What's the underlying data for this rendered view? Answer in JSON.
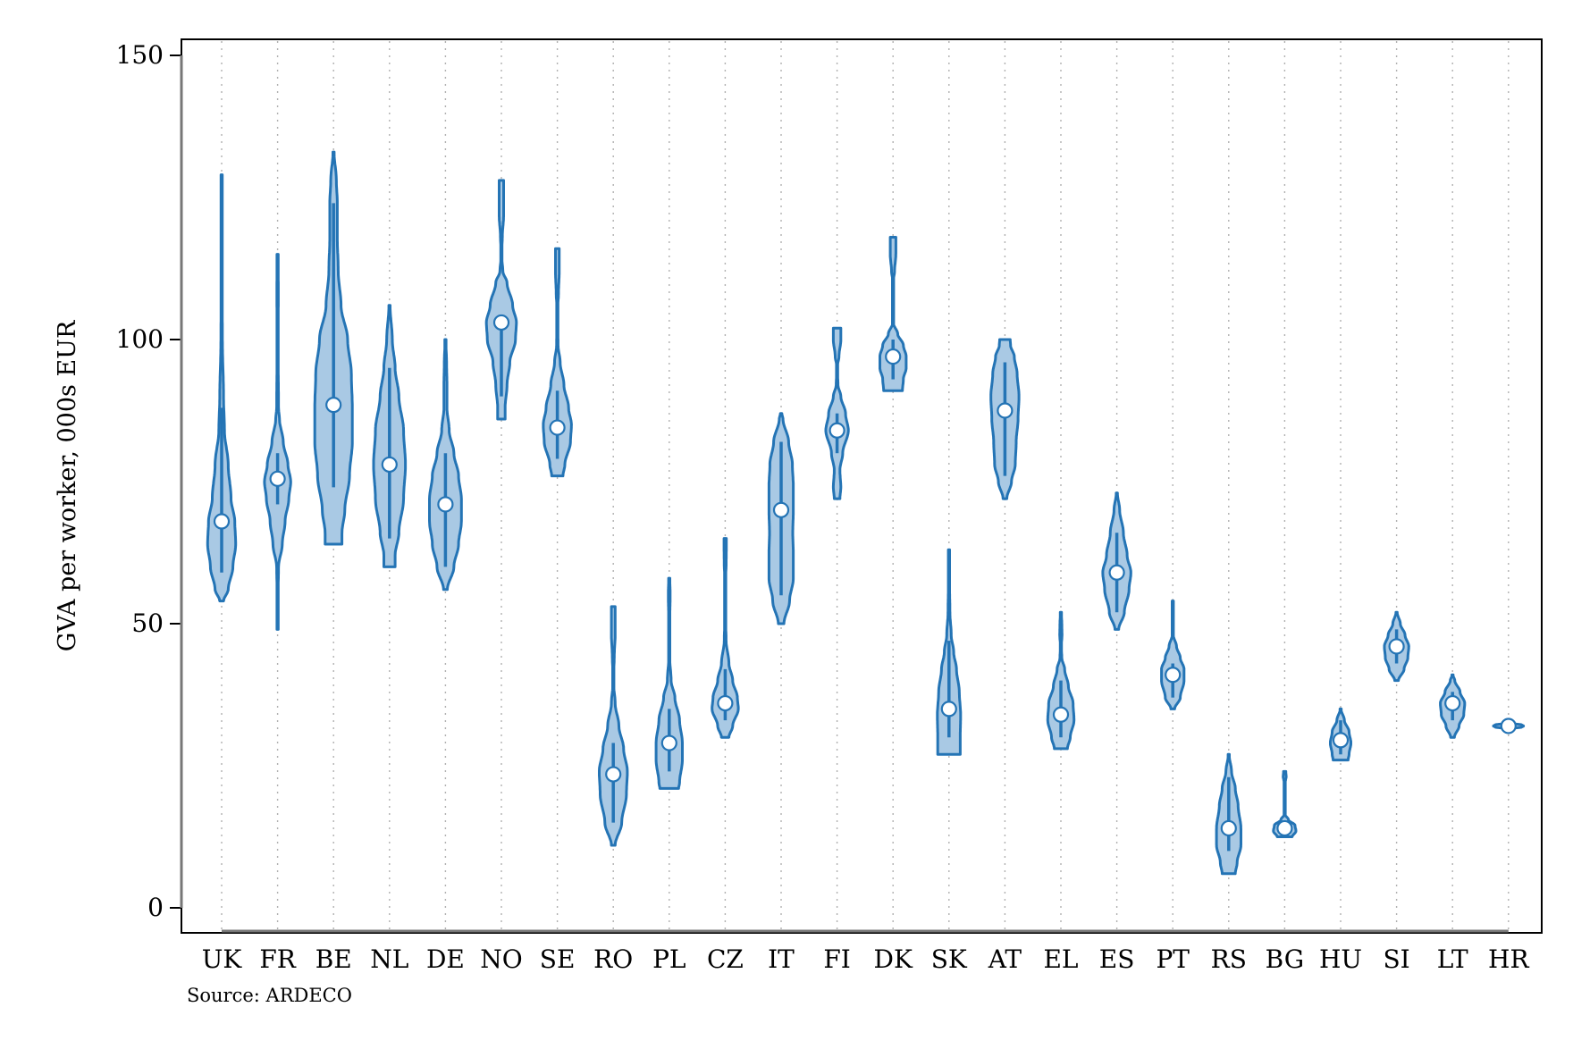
{
  "chart_data": {
    "type": "violin",
    "ylabel": "GVA per worker, 000s EUR",
    "xlabel": "",
    "ylim": [
      -4,
      154
    ],
    "yticks": [
      0,
      50,
      100,
      150
    ],
    "source": "Source: ARDECO",
    "grid": "vertical dotted",
    "colors": {
      "fill": "#a9c9e4",
      "stroke": "#2474b5",
      "median_marker": "#ffffff",
      "grid": "#b0b0b0"
    },
    "categories": [
      "UK",
      "FR",
      "BE",
      "NL",
      "DE",
      "NO",
      "SE",
      "RO",
      "PL",
      "CZ",
      "IT",
      "FI",
      "DK",
      "SK",
      "AT",
      "EL",
      "ES",
      "PT",
      "RS",
      "BG",
      "HU",
      "SI",
      "LT",
      "HR"
    ],
    "series": [
      {
        "category": "UK",
        "median": 68,
        "q1": 59,
        "q3": 88,
        "min": 54,
        "max": 129,
        "profile": [
          [
            54,
            0.1
          ],
          [
            56,
            0.35
          ],
          [
            60,
            0.6
          ],
          [
            64,
            0.75
          ],
          [
            68,
            0.7
          ],
          [
            72,
            0.5
          ],
          [
            78,
            0.35
          ],
          [
            84,
            0.15
          ],
          [
            90,
            0.1
          ],
          [
            100,
            0.04
          ],
          [
            110,
            0.02
          ],
          [
            129,
            0.01
          ]
        ]
      },
      {
        "category": "FR",
        "median": 75.5,
        "q1": 71,
        "q3": 80,
        "min": 49,
        "max": 115,
        "profile": [
          [
            49,
            0.02
          ],
          [
            56,
            0.03
          ],
          [
            60,
            0.05
          ],
          [
            64,
            0.25
          ],
          [
            68,
            0.4
          ],
          [
            72,
            0.6
          ],
          [
            75,
            0.7
          ],
          [
            78,
            0.55
          ],
          [
            82,
            0.3
          ],
          [
            86,
            0.1
          ],
          [
            88,
            0.05
          ],
          [
            100,
            0.02
          ],
          [
            108,
            0.04
          ],
          [
            115,
            0.02
          ]
        ]
      },
      {
        "category": "BE",
        "median": 88.5,
        "q1": 74,
        "q3": 124,
        "min": 64,
        "max": 133,
        "profile": [
          [
            64,
            0.45
          ],
          [
            66,
            0.45
          ],
          [
            70,
            0.6
          ],
          [
            76,
            0.85
          ],
          [
            82,
            1.0
          ],
          [
            88,
            1.0
          ],
          [
            94,
            0.95
          ],
          [
            100,
            0.75
          ],
          [
            106,
            0.4
          ],
          [
            112,
            0.25
          ],
          [
            118,
            0.2
          ],
          [
            124,
            0.2
          ],
          [
            128,
            0.15
          ],
          [
            133,
            0.03
          ]
        ]
      },
      {
        "category": "NL",
        "median": 78,
        "q1": 65,
        "q3": 95,
        "min": 60,
        "max": 106,
        "profile": [
          [
            60,
            0.3
          ],
          [
            62,
            0.3
          ],
          [
            66,
            0.5
          ],
          [
            72,
            0.75
          ],
          [
            78,
            0.85
          ],
          [
            84,
            0.75
          ],
          [
            90,
            0.5
          ],
          [
            95,
            0.3
          ],
          [
            100,
            0.15
          ],
          [
            106,
            0.03
          ]
        ]
      },
      {
        "category": "DE",
        "median": 71,
        "q1": 60,
        "q3": 80,
        "min": 56,
        "max": 100,
        "profile": [
          [
            56,
            0.1
          ],
          [
            60,
            0.45
          ],
          [
            64,
            0.7
          ],
          [
            68,
            0.85
          ],
          [
            72,
            0.85
          ],
          [
            76,
            0.7
          ],
          [
            80,
            0.45
          ],
          [
            84,
            0.2
          ],
          [
            88,
            0.08
          ],
          [
            92,
            0.08
          ],
          [
            96,
            0.06
          ],
          [
            100,
            0.02
          ]
        ]
      },
      {
        "category": "NO",
        "median": 103,
        "q1": 90,
        "q3": 104,
        "min": 86,
        "max": 128,
        "profile": [
          [
            86,
            0.2
          ],
          [
            88,
            0.2
          ],
          [
            92,
            0.3
          ],
          [
            96,
            0.45
          ],
          [
            100,
            0.75
          ],
          [
            103,
            0.8
          ],
          [
            106,
            0.6
          ],
          [
            110,
            0.3
          ],
          [
            112,
            0.08
          ],
          [
            115,
            0.0
          ],
          [
            118,
            0.05
          ],
          [
            122,
            0.12
          ],
          [
            126,
            0.12
          ],
          [
            128,
            0.12
          ]
        ]
      },
      {
        "category": "SE",
        "median": 84.5,
        "q1": 79,
        "q3": 91,
        "min": 76,
        "max": 116,
        "profile": [
          [
            76,
            0.3
          ],
          [
            78,
            0.4
          ],
          [
            82,
            0.7
          ],
          [
            85,
            0.75
          ],
          [
            88,
            0.6
          ],
          [
            92,
            0.35
          ],
          [
            96,
            0.15
          ],
          [
            99,
            0.04
          ],
          [
            105,
            0.0
          ],
          [
            108,
            0.06
          ],
          [
            112,
            0.1
          ],
          [
            116,
            0.1
          ]
        ]
      },
      {
        "category": "RO",
        "median": 23.5,
        "q1": 15,
        "q3": 29,
        "min": 11,
        "max": 53,
        "profile": [
          [
            11,
            0.1
          ],
          [
            15,
            0.45
          ],
          [
            20,
            0.7
          ],
          [
            24,
            0.75
          ],
          [
            28,
            0.55
          ],
          [
            32,
            0.3
          ],
          [
            36,
            0.1
          ],
          [
            40,
            0.0
          ],
          [
            44,
            0.05
          ],
          [
            48,
            0.1
          ],
          [
            53,
            0.1
          ]
        ]
      },
      {
        "category": "PL",
        "median": 29,
        "q1": 24,
        "q3": 35,
        "min": 21,
        "max": 58,
        "profile": [
          [
            21,
            0.5
          ],
          [
            22,
            0.55
          ],
          [
            26,
            0.7
          ],
          [
            29,
            0.7
          ],
          [
            33,
            0.55
          ],
          [
            37,
            0.3
          ],
          [
            40,
            0.1
          ],
          [
            45,
            0.0
          ],
          [
            51,
            0.03
          ],
          [
            55,
            0.05
          ],
          [
            58,
            0.03
          ]
        ]
      },
      {
        "category": "CZ",
        "median": 36,
        "q1": 33,
        "q3": 42,
        "min": 30,
        "max": 65,
        "profile": [
          [
            30,
            0.2
          ],
          [
            32,
            0.4
          ],
          [
            35,
            0.7
          ],
          [
            37,
            0.65
          ],
          [
            40,
            0.4
          ],
          [
            43,
            0.2
          ],
          [
            47,
            0.05
          ],
          [
            52,
            0.0
          ],
          [
            58,
            0.0
          ],
          [
            60,
            0.05
          ],
          [
            63,
            0.06
          ],
          [
            65,
            0.06
          ]
        ]
      },
      {
        "category": "IT",
        "median": 70,
        "q1": 55,
        "q3": 82,
        "min": 50,
        "max": 87,
        "profile": [
          [
            50,
            0.15
          ],
          [
            54,
            0.45
          ],
          [
            58,
            0.65
          ],
          [
            62,
            0.65
          ],
          [
            66,
            0.62
          ],
          [
            70,
            0.65
          ],
          [
            74,
            0.65
          ],
          [
            78,
            0.6
          ],
          [
            82,
            0.4
          ],
          [
            86,
            0.1
          ],
          [
            87,
            0.04
          ]
        ]
      },
      {
        "category": "FI",
        "median": 84,
        "q1": 80,
        "q3": 87,
        "min": 72,
        "max": 102,
        "profile": [
          [
            72,
            0.15
          ],
          [
            74,
            0.2
          ],
          [
            77,
            0.15
          ],
          [
            80,
            0.3
          ],
          [
            84,
            0.6
          ],
          [
            87,
            0.45
          ],
          [
            90,
            0.2
          ],
          [
            92,
            0.05
          ],
          [
            95,
            0.0
          ],
          [
            97,
            0.1
          ],
          [
            100,
            0.2
          ],
          [
            102,
            0.2
          ]
        ]
      },
      {
        "category": "DK",
        "median": 97,
        "q1": 93,
        "q3": 100,
        "min": 91,
        "max": 118,
        "profile": [
          [
            91,
            0.5
          ],
          [
            93,
            0.55
          ],
          [
            95,
            0.7
          ],
          [
            97,
            0.7
          ],
          [
            99,
            0.55
          ],
          [
            101,
            0.25
          ],
          [
            103,
            0.0
          ],
          [
            110,
            0.0
          ],
          [
            112,
            0.08
          ],
          [
            115,
            0.15
          ],
          [
            118,
            0.15
          ]
        ]
      },
      {
        "category": "SK",
        "median": 35,
        "q1": 30,
        "q3": 47,
        "min": 27,
        "max": 63,
        "profile": [
          [
            27,
            0.6
          ],
          [
            28,
            0.6
          ],
          [
            30,
            0.6
          ],
          [
            34,
            0.62
          ],
          [
            38,
            0.55
          ],
          [
            42,
            0.4
          ],
          [
            45,
            0.25
          ],
          [
            48,
            0.12
          ],
          [
            52,
            0.05
          ],
          [
            57,
            0.03
          ],
          [
            63,
            0.02
          ]
        ]
      },
      {
        "category": "AT",
        "median": 87.5,
        "q1": 76,
        "q3": 96,
        "min": 72,
        "max": 100,
        "profile": [
          [
            72,
            0.1
          ],
          [
            75,
            0.35
          ],
          [
            78,
            0.55
          ],
          [
            82,
            0.6
          ],
          [
            86,
            0.7
          ],
          [
            90,
            0.75
          ],
          [
            94,
            0.65
          ],
          [
            97,
            0.5
          ],
          [
            99,
            0.3
          ],
          [
            100,
            0.28
          ]
        ]
      },
      {
        "category": "EL",
        "median": 34,
        "q1": 30,
        "q3": 40,
        "min": 28,
        "max": 52,
        "profile": [
          [
            28,
            0.35
          ],
          [
            30,
            0.5
          ],
          [
            33,
            0.7
          ],
          [
            36,
            0.65
          ],
          [
            39,
            0.4
          ],
          [
            42,
            0.2
          ],
          [
            44,
            0.05
          ],
          [
            46,
            0.02
          ],
          [
            48,
            0.06
          ],
          [
            50,
            0.05
          ],
          [
            52,
            0.02
          ]
        ]
      },
      {
        "category": "ES",
        "median": 59,
        "q1": 52,
        "q3": 66,
        "min": 49,
        "max": 73,
        "profile": [
          [
            49,
            0.1
          ],
          [
            52,
            0.4
          ],
          [
            56,
            0.65
          ],
          [
            59,
            0.75
          ],
          [
            62,
            0.55
          ],
          [
            66,
            0.35
          ],
          [
            70,
            0.15
          ],
          [
            73,
            0.03
          ]
        ]
      },
      {
        "category": "PT",
        "median": 41,
        "q1": 37,
        "q3": 43,
        "min": 35,
        "max": 54,
        "profile": [
          [
            35,
            0.1
          ],
          [
            37,
            0.4
          ],
          [
            40,
            0.6
          ],
          [
            42,
            0.6
          ],
          [
            44,
            0.4
          ],
          [
            46,
            0.2
          ],
          [
            48,
            0.03
          ],
          [
            50,
            0.02
          ],
          [
            52,
            0.02
          ],
          [
            54,
            0.01
          ]
        ]
      },
      {
        "category": "RS",
        "median": 14,
        "q1": 10,
        "q3": 23,
        "min": 6,
        "max": 27,
        "profile": [
          [
            6,
            0.35
          ],
          [
            8,
            0.45
          ],
          [
            11,
            0.65
          ],
          [
            14,
            0.65
          ],
          [
            18,
            0.5
          ],
          [
            21,
            0.35
          ],
          [
            24,
            0.15
          ],
          [
            27,
            0.02
          ]
        ]
      },
      {
        "category": "BG",
        "median": 14,
        "q1": 13,
        "q3": 15,
        "min": 12.5,
        "max": 24,
        "profile": [
          [
            12.5,
            0.4
          ],
          [
            13.5,
            0.6
          ],
          [
            14.5,
            0.55
          ],
          [
            15.5,
            0.2
          ],
          [
            16.5,
            0.0
          ],
          [
            22,
            0.0
          ],
          [
            22.5,
            0.05
          ],
          [
            23,
            0.08
          ],
          [
            24,
            0.06
          ]
        ]
      },
      {
        "category": "HU",
        "median": 29.5,
        "q1": 27,
        "q3": 33,
        "min": 26,
        "max": 35,
        "profile": [
          [
            26,
            0.4
          ],
          [
            27,
            0.45
          ],
          [
            29,
            0.55
          ],
          [
            31,
            0.45
          ],
          [
            33,
            0.2
          ],
          [
            35,
            0.02
          ]
        ]
      },
      {
        "category": "SI",
        "median": 46,
        "q1": 43,
        "q3": 49,
        "min": 40,
        "max": 52,
        "profile": [
          [
            40,
            0.1
          ],
          [
            42,
            0.4
          ],
          [
            44,
            0.6
          ],
          [
            46,
            0.65
          ],
          [
            48,
            0.45
          ],
          [
            50,
            0.2
          ],
          [
            52,
            0.03
          ]
        ]
      },
      {
        "category": "LT",
        "median": 36,
        "q1": 33,
        "q3": 38,
        "min": 30,
        "max": 41,
        "profile": [
          [
            30,
            0.1
          ],
          [
            32,
            0.35
          ],
          [
            34,
            0.6
          ],
          [
            36,
            0.65
          ],
          [
            38,
            0.4
          ],
          [
            40,
            0.12
          ],
          [
            41,
            0.02
          ]
        ]
      },
      {
        "category": "HR",
        "median": 32,
        "q1": 31.8,
        "q3": 32.2,
        "min": 31.5,
        "max": 32.5,
        "profile": [
          [
            31.5,
            0.0
          ],
          [
            31.8,
            0.7
          ],
          [
            32,
            0.8
          ],
          [
            32.2,
            0.7
          ],
          [
            32.5,
            0.0
          ]
        ]
      }
    ]
  }
}
